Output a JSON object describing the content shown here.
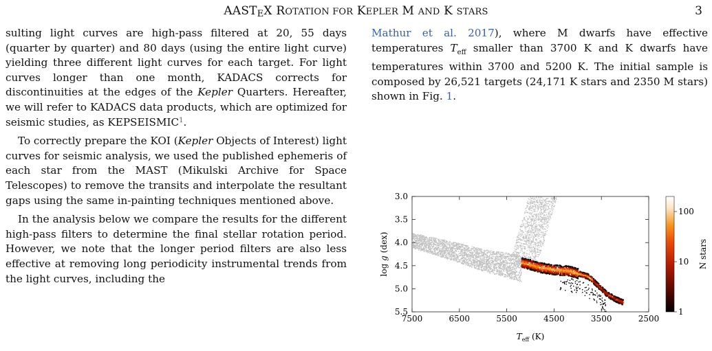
{
  "header": {
    "title": "AASTEX ROTATION FOR KEPLER M AND K STARS",
    "page_number": "3"
  },
  "left_column": {
    "p1_a": "sulting light curves are high-pass filtered at 20, 55 days (quarter by quarter) and 80 days (using the entire light curve) yielding three different light curves for each target. For light curves longer than one month, KADACS corrects for discontinuities at the edges of the ",
    "p1_kepler": "Kepler",
    "p1_b": " Quarters. Hereafter, we will refer to KADACS data products, which are optimized for seismic studies, as KEPSEISMIC",
    "p1_fn": "1",
    "p1_c": ".",
    "p2_a": "To correctly prepare the KOI (",
    "p2_kepler": "Kepler",
    "p2_b": " Objects of Interest) light curves for seismic analysis, we used the published ephemeris of each star from the MAST (Mikulski Archive for Space Telescopes) to remove the transits and interpolate the resultant gaps using the same in-painting techniques mentioned above.",
    "p3": "In the analysis below we compare the results for the different high-pass filters to determine the final stellar rotation period. However, we note that the longer period filters are also less effective at removing long periodicity instrumental trends from the light curves, including the"
  },
  "right_column": {
    "ref1": "Mathur et al. 2017",
    "t1": "), where M dwarfs have effective temperatures ",
    "teff": "T",
    "teff_sub": "eff",
    "t2": " smaller than 3700 K and K dwarfs have temperatures within 3700 and 5200 K. The initial sample is composed by 26,521 targets (24,171 K stars and 2350 M stars) shown in Fig. ",
    "ref_fig": "1",
    "t3": "."
  },
  "chart_data": {
    "type": "scatter",
    "title": "",
    "xlabel": "T_eff (K)",
    "ylabel": "log g (dex)",
    "xlim": [
      7500,
      2500
    ],
    "ylim": [
      5.5,
      3.0
    ],
    "x_ticks": [
      "7500",
      "6500",
      "5500",
      "4500",
      "3500",
      "2500"
    ],
    "y_ticks": [
      "3.0",
      "3.5",
      "4.0",
      "4.5",
      "5.0",
      "5.5"
    ],
    "background_series": {
      "name": "",
      "color": "#c0c0c0",
      "main_sequence": [
        [
          7500,
          3.95
        ],
        [
          7000,
          4.08
        ],
        [
          6500,
          4.22
        ],
        [
          6000,
          4.38
        ],
        [
          5500,
          4.48
        ],
        [
          5200,
          4.56
        ]
      ],
      "subgiant_region": [
        [
          5600,
          3.0
        ],
        [
          4800,
          3.0
        ],
        [
          4700,
          3.55
        ],
        [
          4900,
          4.1
        ],
        [
          5200,
          4.35
        ]
      ]
    },
    "density_series": {
      "name": "",
      "ridge": [
        [
          5200,
          4.42
        ],
        [
          5000,
          4.47
        ],
        [
          4800,
          4.53
        ],
        [
          4500,
          4.58
        ],
        [
          4200,
          4.6
        ],
        [
          4000,
          4.66
        ],
        [
          3800,
          4.72
        ],
        [
          3700,
          4.8
        ],
        [
          3550,
          4.95
        ],
        [
          3400,
          5.1
        ],
        [
          3200,
          5.22
        ],
        [
          3000,
          5.3
        ]
      ],
      "colormap": [
        "#000000",
        "#5a0a00",
        "#b01a00",
        "#e84a08",
        "#f7941d",
        "#fde6c2",
        "#ffffff"
      ]
    },
    "colorbar": {
      "label": "N stars",
      "scale": "log",
      "ticks": [
        "1",
        "10",
        "100"
      ]
    }
  }
}
